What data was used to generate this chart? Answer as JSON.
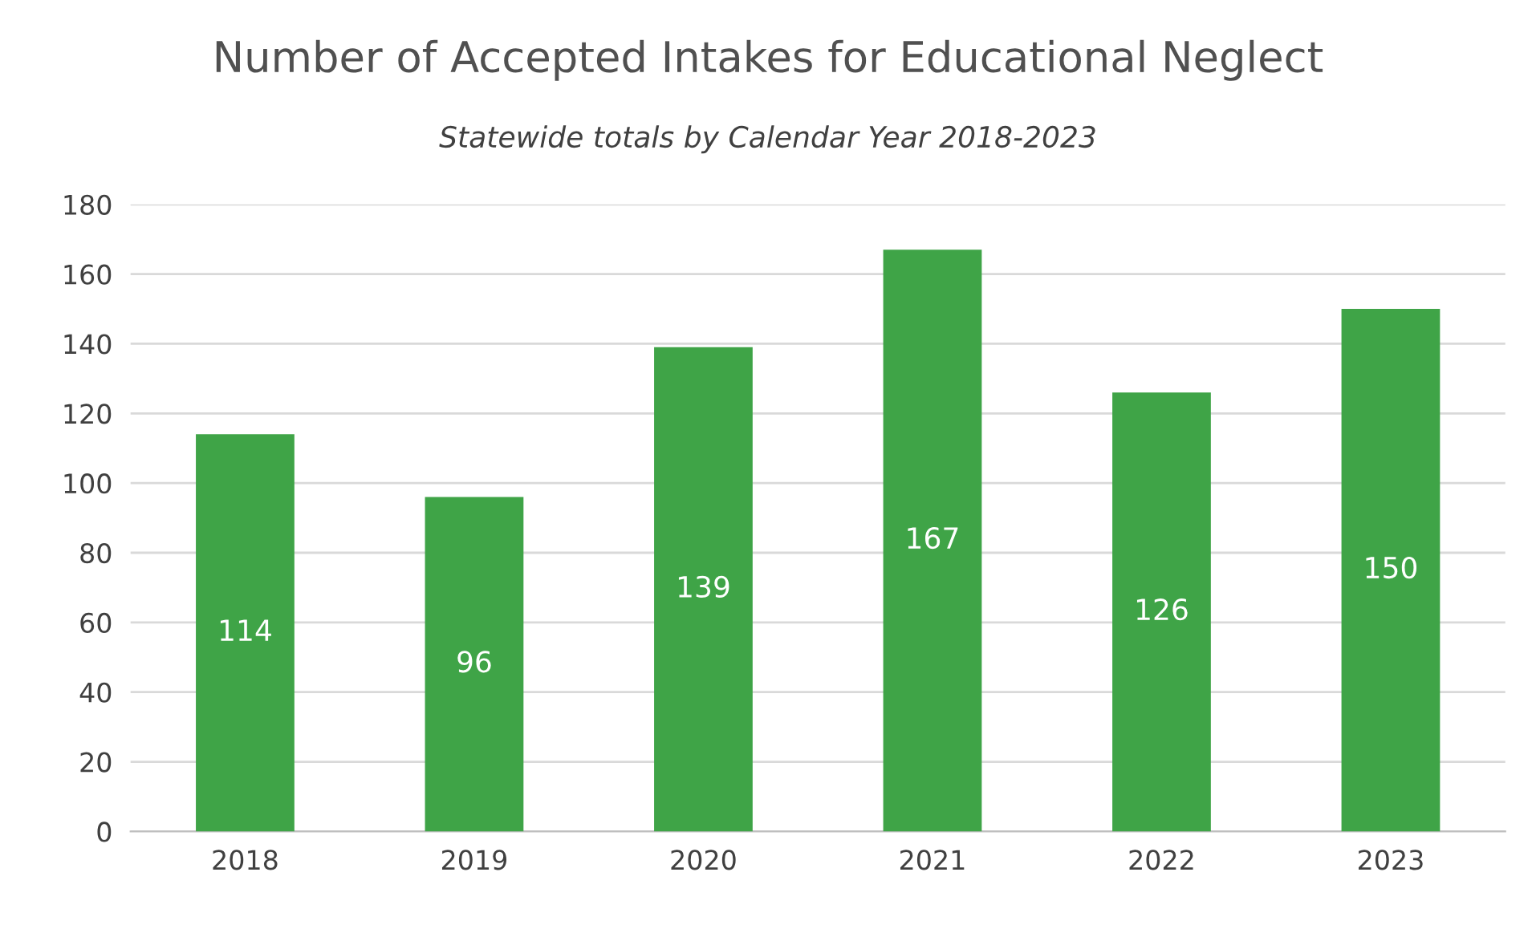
{
  "chart_data": {
    "type": "bar",
    "title": "Number of Accepted Intakes for Educational Neglect",
    "subtitle": "Statewide totals by Calendar Year 2018-2023",
    "categories": [
      "2018",
      "2019",
      "2020",
      "2021",
      "2022",
      "2023"
    ],
    "values": [
      114,
      96,
      139,
      167,
      126,
      150
    ],
    "color": "#3fa447",
    "ylim": [
      0,
      180
    ],
    "yticks": [
      0,
      20,
      40,
      60,
      80,
      100,
      120,
      140,
      160,
      180
    ],
    "grid": "y",
    "data_labels": true
  }
}
